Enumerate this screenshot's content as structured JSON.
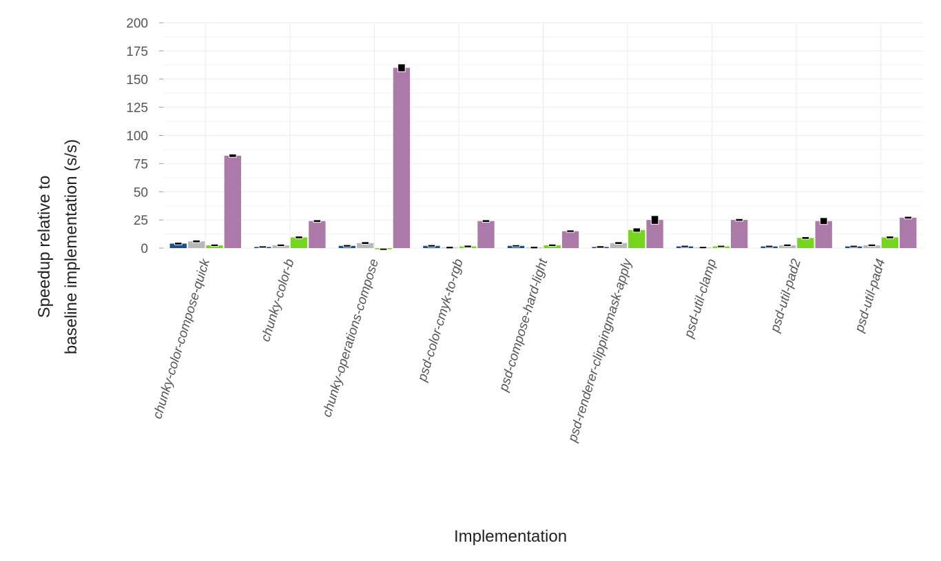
{
  "chart_data": {
    "type": "bar",
    "title": "",
    "xlabel": "Implementation",
    "ylabel_lines": [
      "Speedup relative to",
      "baseline implementation (s/s)"
    ],
    "ylim": [
      0,
      200
    ],
    "yticks": [
      0,
      25,
      50,
      75,
      100,
      125,
      150,
      175,
      200
    ],
    "grid": true,
    "legend": "none",
    "categories": [
      "chunky-color-compose-quick",
      "chunky-color-b",
      "chunky-operations-compose",
      "psd-color-cmyk-to-rgb",
      "psd-compose-hard-light",
      "psd-renderer-clippingmask-apply",
      "psd-util-clamp",
      "psd-util-pad2",
      "psd-util-pad4"
    ],
    "series": [
      {
        "color": "#1f4e8c",
        "values": [
          4,
          1,
          2,
          2,
          2,
          1,
          1.5,
          1.5,
          1.5
        ],
        "errors": [
          0.5,
          0.3,
          0.4,
          0.4,
          0.3,
          0.4,
          0.3,
          0.3,
          0.3
        ]
      },
      {
        "color": "#b8b8b8",
        "values": [
          6,
          2.5,
          4.5,
          0.5,
          0.5,
          4.5,
          0.5,
          2.5,
          2.5
        ],
        "errors": [
          0.5,
          0.4,
          0.5,
          0.4,
          0.4,
          0.5,
          0.3,
          0.4,
          0.4
        ]
      },
      {
        "color": "#77d41f",
        "values": [
          2.5,
          9.5,
          -1,
          1.5,
          2.5,
          16,
          1.5,
          9,
          9.5
        ],
        "errors": [
          0.4,
          0.5,
          0.3,
          0.4,
          0.4,
          1.2,
          0.3,
          0.5,
          0.5
        ]
      },
      {
        "color": "#ac7aa9",
        "values": [
          82,
          24,
          160,
          24,
          15,
          25,
          25,
          24,
          27
        ],
        "errors": [
          0.8,
          0.5,
          2.8,
          0.5,
          0.4,
          3.2,
          0.5,
          2.4,
          0.5
        ]
      }
    ]
  }
}
